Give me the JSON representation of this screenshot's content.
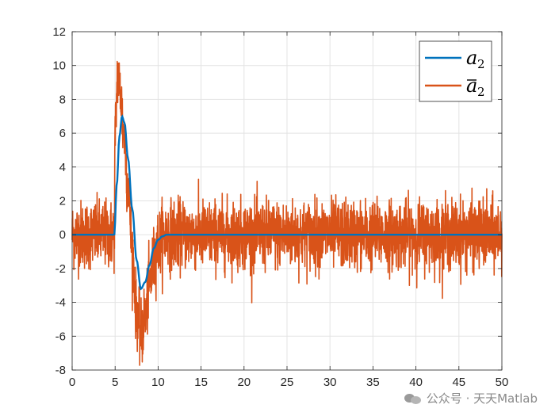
{
  "chart_data": {
    "type": "line",
    "title": "",
    "xlabel": "",
    "ylabel": "",
    "xlim": [
      0,
      50
    ],
    "ylim": [
      -8,
      12
    ],
    "xticks": [
      0,
      5,
      10,
      15,
      20,
      25,
      30,
      35,
      40,
      45,
      50
    ],
    "yticks": [
      -8,
      -6,
      -4,
      -2,
      0,
      2,
      4,
      6,
      8,
      10,
      12
    ],
    "xtick_labels": [
      "0",
      "5",
      "10",
      "15",
      "20",
      "25",
      "30",
      "35",
      "40",
      "45",
      "50"
    ],
    "ytick_labels": [
      "-8",
      "-6",
      "-4",
      "-2",
      "0",
      "2",
      "4",
      "6",
      "8",
      "10",
      "12"
    ],
    "grid": true,
    "legend_position": "top-right",
    "series": [
      {
        "name": "a",
        "subscript": "2",
        "color": "#0072BD",
        "x": [
          0,
          4.9,
          5.2,
          5.5,
          5.8,
          6.1,
          6.5,
          7.0,
          7.5,
          8.0,
          8.5,
          9.0,
          9.5,
          10,
          10.5,
          11,
          12,
          15,
          20,
          30,
          40,
          50
        ],
        "y": [
          0,
          0,
          3.0,
          5.8,
          7.0,
          6.6,
          4.5,
          1.5,
          -1.5,
          -3.2,
          -2.8,
          -1.8,
          -0.8,
          -0.3,
          -0.1,
          0,
          0,
          0,
          0,
          0,
          0,
          0
        ]
      },
      {
        "name": "a",
        "subscript": "2",
        "overbar": true,
        "color": "#D95319",
        "noise_std": 1.0,
        "x": [
          0,
          4.9,
          5.0,
          5.3,
          5.6,
          6.0,
          6.5,
          7.0,
          7.5,
          8.0,
          8.5,
          9.0,
          9.5,
          10,
          10.5,
          11,
          12,
          15,
          20,
          30,
          40,
          50
        ],
        "y": [
          0,
          0,
          6.0,
          9.5,
          8.5,
          6.0,
          3.0,
          -1.0,
          -4.5,
          -6.0,
          -4.8,
          -3.0,
          -1.6,
          -0.5,
          -0.1,
          0,
          0,
          0,
          0,
          0,
          0,
          0
        ]
      }
    ]
  },
  "watermark": {
    "text": "公众号 · 天天Matlab"
  }
}
